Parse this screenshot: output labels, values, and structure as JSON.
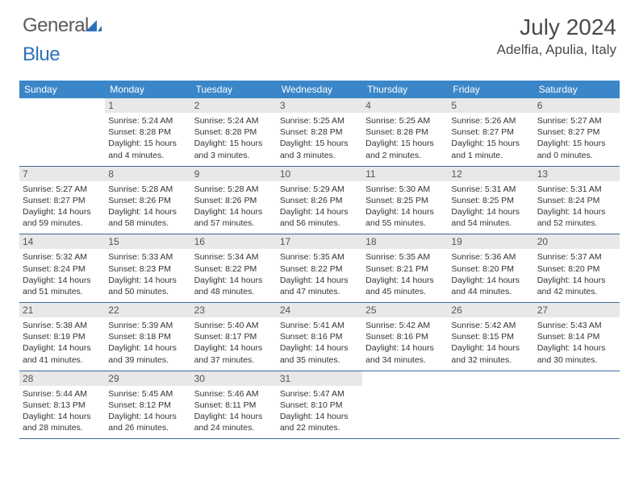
{
  "brand": {
    "part1": "General",
    "part2": "Blue"
  },
  "title": "July 2024",
  "location": "Adelfia, Apulia, Italy",
  "colors": {
    "header_bg": "#3a86c8",
    "header_text": "#ffffff",
    "daynum_bg": "#e8e8e8",
    "border": "#3a6a9a",
    "brand_gray": "#5a5a5a",
    "brand_blue": "#2e72b8"
  },
  "day_names": [
    "Sunday",
    "Monday",
    "Tuesday",
    "Wednesday",
    "Thursday",
    "Friday",
    "Saturday"
  ],
  "weeks": [
    [
      {
        "n": "",
        "sr": "",
        "ss": "",
        "dl": ""
      },
      {
        "n": "1",
        "sr": "Sunrise: 5:24 AM",
        "ss": "Sunset: 8:28 PM",
        "dl": "Daylight: 15 hours and 4 minutes."
      },
      {
        "n": "2",
        "sr": "Sunrise: 5:24 AM",
        "ss": "Sunset: 8:28 PM",
        "dl": "Daylight: 15 hours and 3 minutes."
      },
      {
        "n": "3",
        "sr": "Sunrise: 5:25 AM",
        "ss": "Sunset: 8:28 PM",
        "dl": "Daylight: 15 hours and 3 minutes."
      },
      {
        "n": "4",
        "sr": "Sunrise: 5:25 AM",
        "ss": "Sunset: 8:28 PM",
        "dl": "Daylight: 15 hours and 2 minutes."
      },
      {
        "n": "5",
        "sr": "Sunrise: 5:26 AM",
        "ss": "Sunset: 8:27 PM",
        "dl": "Daylight: 15 hours and 1 minute."
      },
      {
        "n": "6",
        "sr": "Sunrise: 5:27 AM",
        "ss": "Sunset: 8:27 PM",
        "dl": "Daylight: 15 hours and 0 minutes."
      }
    ],
    [
      {
        "n": "7",
        "sr": "Sunrise: 5:27 AM",
        "ss": "Sunset: 8:27 PM",
        "dl": "Daylight: 14 hours and 59 minutes."
      },
      {
        "n": "8",
        "sr": "Sunrise: 5:28 AM",
        "ss": "Sunset: 8:26 PM",
        "dl": "Daylight: 14 hours and 58 minutes."
      },
      {
        "n": "9",
        "sr": "Sunrise: 5:28 AM",
        "ss": "Sunset: 8:26 PM",
        "dl": "Daylight: 14 hours and 57 minutes."
      },
      {
        "n": "10",
        "sr": "Sunrise: 5:29 AM",
        "ss": "Sunset: 8:26 PM",
        "dl": "Daylight: 14 hours and 56 minutes."
      },
      {
        "n": "11",
        "sr": "Sunrise: 5:30 AM",
        "ss": "Sunset: 8:25 PM",
        "dl": "Daylight: 14 hours and 55 minutes."
      },
      {
        "n": "12",
        "sr": "Sunrise: 5:31 AM",
        "ss": "Sunset: 8:25 PM",
        "dl": "Daylight: 14 hours and 54 minutes."
      },
      {
        "n": "13",
        "sr": "Sunrise: 5:31 AM",
        "ss": "Sunset: 8:24 PM",
        "dl": "Daylight: 14 hours and 52 minutes."
      }
    ],
    [
      {
        "n": "14",
        "sr": "Sunrise: 5:32 AM",
        "ss": "Sunset: 8:24 PM",
        "dl": "Daylight: 14 hours and 51 minutes."
      },
      {
        "n": "15",
        "sr": "Sunrise: 5:33 AM",
        "ss": "Sunset: 8:23 PM",
        "dl": "Daylight: 14 hours and 50 minutes."
      },
      {
        "n": "16",
        "sr": "Sunrise: 5:34 AM",
        "ss": "Sunset: 8:22 PM",
        "dl": "Daylight: 14 hours and 48 minutes."
      },
      {
        "n": "17",
        "sr": "Sunrise: 5:35 AM",
        "ss": "Sunset: 8:22 PM",
        "dl": "Daylight: 14 hours and 47 minutes."
      },
      {
        "n": "18",
        "sr": "Sunrise: 5:35 AM",
        "ss": "Sunset: 8:21 PM",
        "dl": "Daylight: 14 hours and 45 minutes."
      },
      {
        "n": "19",
        "sr": "Sunrise: 5:36 AM",
        "ss": "Sunset: 8:20 PM",
        "dl": "Daylight: 14 hours and 44 minutes."
      },
      {
        "n": "20",
        "sr": "Sunrise: 5:37 AM",
        "ss": "Sunset: 8:20 PM",
        "dl": "Daylight: 14 hours and 42 minutes."
      }
    ],
    [
      {
        "n": "21",
        "sr": "Sunrise: 5:38 AM",
        "ss": "Sunset: 8:19 PM",
        "dl": "Daylight: 14 hours and 41 minutes."
      },
      {
        "n": "22",
        "sr": "Sunrise: 5:39 AM",
        "ss": "Sunset: 8:18 PM",
        "dl": "Daylight: 14 hours and 39 minutes."
      },
      {
        "n": "23",
        "sr": "Sunrise: 5:40 AM",
        "ss": "Sunset: 8:17 PM",
        "dl": "Daylight: 14 hours and 37 minutes."
      },
      {
        "n": "24",
        "sr": "Sunrise: 5:41 AM",
        "ss": "Sunset: 8:16 PM",
        "dl": "Daylight: 14 hours and 35 minutes."
      },
      {
        "n": "25",
        "sr": "Sunrise: 5:42 AM",
        "ss": "Sunset: 8:16 PM",
        "dl": "Daylight: 14 hours and 34 minutes."
      },
      {
        "n": "26",
        "sr": "Sunrise: 5:42 AM",
        "ss": "Sunset: 8:15 PM",
        "dl": "Daylight: 14 hours and 32 minutes."
      },
      {
        "n": "27",
        "sr": "Sunrise: 5:43 AM",
        "ss": "Sunset: 8:14 PM",
        "dl": "Daylight: 14 hours and 30 minutes."
      }
    ],
    [
      {
        "n": "28",
        "sr": "Sunrise: 5:44 AM",
        "ss": "Sunset: 8:13 PM",
        "dl": "Daylight: 14 hours and 28 minutes."
      },
      {
        "n": "29",
        "sr": "Sunrise: 5:45 AM",
        "ss": "Sunset: 8:12 PM",
        "dl": "Daylight: 14 hours and 26 minutes."
      },
      {
        "n": "30",
        "sr": "Sunrise: 5:46 AM",
        "ss": "Sunset: 8:11 PM",
        "dl": "Daylight: 14 hours and 24 minutes."
      },
      {
        "n": "31",
        "sr": "Sunrise: 5:47 AM",
        "ss": "Sunset: 8:10 PM",
        "dl": "Daylight: 14 hours and 22 minutes."
      },
      {
        "n": "",
        "sr": "",
        "ss": "",
        "dl": ""
      },
      {
        "n": "",
        "sr": "",
        "ss": "",
        "dl": ""
      },
      {
        "n": "",
        "sr": "",
        "ss": "",
        "dl": ""
      }
    ]
  ]
}
